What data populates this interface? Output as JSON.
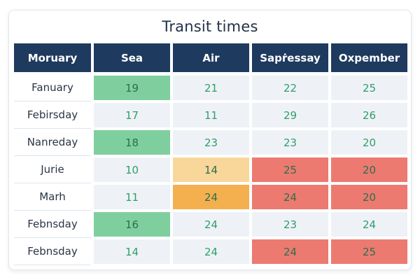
{
  "chart_data": {
    "type": "heatmap",
    "title": "Transit times",
    "corner_label": "Moruary",
    "columns": [
      "Sea",
      "Air",
      "Sapṙessay",
      "Oxpember"
    ],
    "rows": [
      "Fanuary",
      "Febirsday",
      "Nanreday",
      "Jurie",
      "Marh",
      "Febnsday",
      "Febnsday"
    ],
    "values": [
      [
        19,
        21,
        22,
        25
      ],
      [
        17,
        11,
        29,
        26
      ],
      [
        18,
        23,
        23,
        20
      ],
      [
        10,
        14,
        25,
        20
      ],
      [
        11,
        24,
        24,
        20
      ],
      [
        16,
        24,
        23,
        24
      ],
      [
        14,
        24,
        24,
        25
      ]
    ],
    "highlight": [
      [
        "good",
        "none",
        "none",
        "none"
      ],
      [
        "none",
        "none",
        "none",
        "none"
      ],
      [
        "good",
        "none",
        "none",
        "none"
      ],
      [
        "none",
        "warn-light",
        "bad",
        "bad"
      ],
      [
        "none",
        "warn",
        "bad",
        "bad"
      ],
      [
        "good",
        "none",
        "none",
        "none"
      ],
      [
        "none",
        "none",
        "bad",
        "bad"
      ]
    ],
    "colors": {
      "header_bg": "#1f3a5f",
      "cell_default": "#eef2f6",
      "good": "#7fcf9e",
      "warn-light": "#f9d69a",
      "warn": "#f4b04f",
      "bad": "#ec7a70",
      "value_text": "#2f9e6a",
      "value_text_on_color": "#2d6e4d"
    }
  }
}
